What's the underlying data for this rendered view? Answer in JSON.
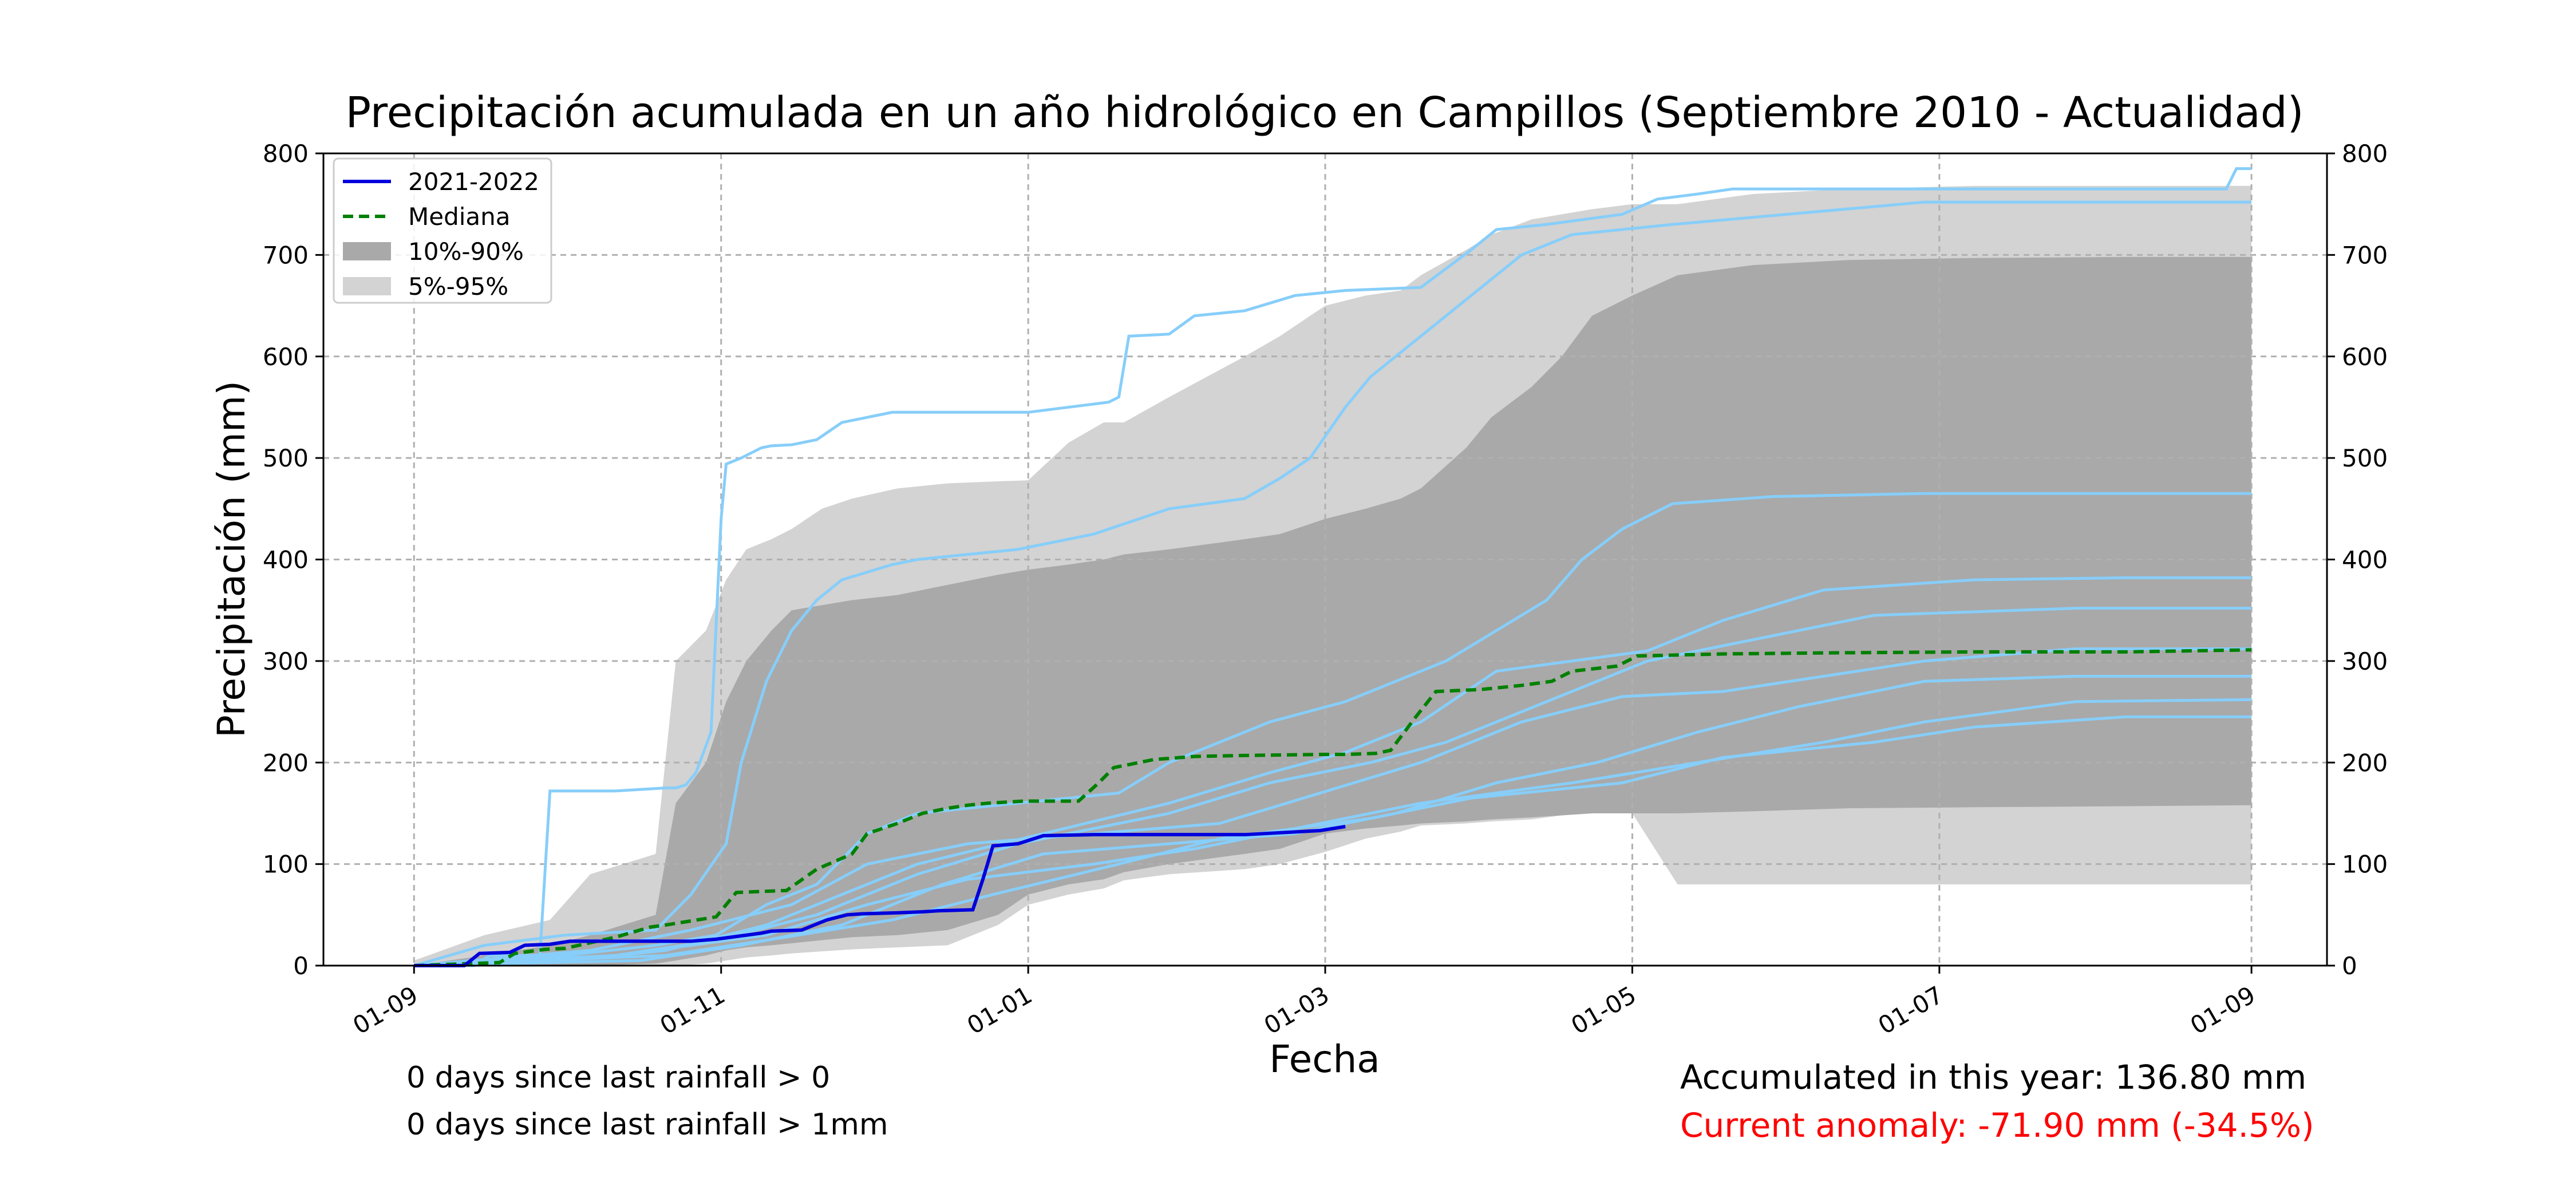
{
  "chart_data": {
    "type": "line",
    "title": "Precipitación acumulada en un año hidrológico en Campillos (Septiembre 2010 - Actualidad)",
    "xlabel": "Fecha",
    "ylabel": "Precipitación (mm)",
    "x_ticks": [
      "01-09",
      "01-11",
      "01-01",
      "01-03",
      "01-05",
      "01-07",
      "01-09"
    ],
    "x_tick_days": [
      0,
      61,
      122,
      181,
      242,
      303,
      365
    ],
    "x_range_days": [
      -18,
      380
    ],
    "ylim": [
      0,
      800
    ],
    "y_ticks": [
      0,
      100,
      200,
      300,
      400,
      500,
      600,
      700,
      800
    ],
    "grid": true,
    "legend_position": "top-left",
    "legend": [
      {
        "label": "2021-2022",
        "style": "line",
        "color": "#0000dd"
      },
      {
        "label": "Mediana",
        "style": "dashed",
        "color": "#008000"
      },
      {
        "label": "10%-90%",
        "style": "patch",
        "color": "#a9a9a9"
      },
      {
        "label": "5%-95%",
        "style": "patch",
        "color": "#d3d3d3"
      }
    ],
    "colors": {
      "current": "#0000dd",
      "median": "#008000",
      "band_10_90": "#a9a9a9",
      "band_5_95": "#d3d3d3",
      "historical": "#87cefa",
      "grid": "#b0b0b0"
    },
    "band_5_95": {
      "x": [
        0,
        14,
        27,
        35,
        48,
        52,
        58,
        62,
        66,
        71,
        75,
        81,
        87,
        96,
        106,
        116,
        122,
        130,
        137,
        141,
        150,
        165,
        172,
        181,
        189,
        196,
        200,
        209,
        214,
        222,
        228,
        234,
        242,
        251,
        266,
        285,
        310,
        340,
        365
      ],
      "lower": [
        0,
        0,
        0,
        0,
        0,
        0,
        2,
        5,
        8,
        10,
        12,
        14,
        16,
        18,
        20,
        40,
        60,
        70,
        76,
        84,
        90,
        95,
        100,
        112,
        125,
        132,
        138,
        140,
        142,
        144,
        148,
        150,
        150,
        80,
        80,
        80,
        80,
        80,
        80
      ],
      "upper": [
        5,
        30,
        45,
        90,
        110,
        300,
        330,
        380,
        410,
        420,
        430,
        450,
        460,
        470,
        475,
        477,
        478,
        515,
        535,
        535,
        560,
        600,
        620,
        650,
        660,
        665,
        680,
        705,
        720,
        735,
        740,
        745,
        750,
        750,
        760,
        765,
        768,
        768,
        768
      ]
    },
    "band_10_90": {
      "x": [
        0,
        14,
        27,
        35,
        48,
        52,
        58,
        62,
        66,
        71,
        75,
        81,
        87,
        96,
        106,
        116,
        122,
        130,
        137,
        141,
        150,
        165,
        172,
        181,
        189,
        196,
        200,
        209,
        214,
        222,
        228,
        234,
        242,
        251,
        266,
        285,
        310,
        340,
        365
      ],
      "lower": [
        0,
        0,
        0,
        0,
        2,
        5,
        10,
        15,
        18,
        20,
        22,
        25,
        28,
        30,
        35,
        50,
        70,
        80,
        85,
        92,
        100,
        110,
        115,
        130,
        135,
        138,
        140,
        142,
        144,
        146,
        148,
        150,
        150,
        150,
        152,
        155,
        156,
        157,
        158
      ],
      "upper": [
        0,
        10,
        20,
        30,
        50,
        160,
        200,
        260,
        300,
        330,
        350,
        355,
        360,
        365,
        375,
        385,
        390,
        395,
        400,
        405,
        410,
        420,
        425,
        440,
        450,
        460,
        470,
        510,
        540,
        570,
        600,
        640,
        660,
        680,
        690,
        695,
        697,
        698,
        698
      ]
    },
    "median": {
      "x": [
        0,
        17,
        20,
        26,
        30,
        40,
        47,
        50,
        60,
        64,
        74,
        80,
        87,
        90,
        96,
        101,
        106,
        110,
        114,
        121,
        127,
        132,
        136,
        139,
        147,
        155,
        165,
        180,
        185,
        191,
        194,
        199,
        203,
        212,
        220,
        226,
        230,
        239,
        243,
        260,
        280,
        310,
        340,
        365
      ],
      "y": [
        0,
        3,
        12,
        16,
        17,
        28,
        38,
        40,
        48,
        72,
        74,
        95,
        110,
        130,
        140,
        150,
        155,
        158,
        160,
        162,
        162,
        162,
        180,
        195,
        203,
        206,
        207,
        208,
        208,
        209,
        212,
        245,
        270,
        272,
        276,
        280,
        290,
        295,
        305,
        307,
        308,
        309,
        309,
        311
      ]
    },
    "series": [
      {
        "name": "2021-2022",
        "x": [
          0,
          10,
          13,
          19,
          22,
          27,
          31,
          35,
          44,
          55,
          60,
          69,
          71,
          77,
          82,
          86,
          89,
          96,
          101,
          104,
          111,
          113,
          115,
          120,
          125,
          135,
          145,
          165,
          180,
          185
        ],
        "y": [
          0,
          0,
          12,
          13,
          20,
          21,
          24,
          24,
          24,
          24,
          26,
          32,
          34,
          35,
          45,
          50,
          51,
          52,
          53,
          54,
          55,
          85,
          118,
          120,
          128,
          129,
          129,
          129,
          133,
          137
        ]
      },
      {
        "y": [
          0,
          0,
          10,
          10,
          172,
          172,
          175,
          175,
          178,
          190,
          230,
          440,
          494,
          500,
          510,
          512,
          513,
          518,
          535,
          540,
          545,
          545,
          545,
          550,
          555,
          560,
          620,
          622,
          640,
          645,
          660,
          665,
          668,
          705,
          725,
          730,
          740,
          755,
          760,
          765,
          765,
          785,
          785
        ],
        "x": [
          0,
          12,
          15,
          25,
          27,
          40,
          50,
          52,
          54,
          56,
          59,
          61,
          62,
          65,
          69,
          71,
          75,
          80,
          85,
          90,
          95,
          110,
          122,
          130,
          138,
          140,
          142,
          150,
          155,
          165,
          175,
          185,
          200,
          210,
          215,
          225,
          240,
          247,
          255,
          262,
          360,
          362,
          365
        ],
        "_dup": false
      },
      {
        "x": [
          0,
          14,
          30,
          48,
          55,
          62,
          65,
          70,
          75,
          80,
          85,
          95,
          100,
          120,
          135,
          150,
          165,
          172,
          178,
          185,
          190,
          195,
          200,
          205,
          210,
          215,
          220,
          230,
          250,
          300,
          365
        ],
        "y": [
          0,
          20,
          30,
          35,
          70,
          120,
          200,
          280,
          330,
          360,
          380,
          395,
          400,
          410,
          425,
          450,
          460,
          480,
          500,
          550,
          580,
          600,
          620,
          640,
          660,
          680,
          700,
          720,
          730,
          752,
          752
        ]
      },
      {
        "x": [
          0,
          30,
          48,
          60,
          70,
          80,
          90,
          100,
          120,
          140,
          150,
          170,
          185,
          195,
          205,
          215,
          225,
          232,
          240,
          250,
          270,
          300,
          365
        ],
        "y": [
          0,
          10,
          20,
          30,
          60,
          80,
          130,
          150,
          160,
          170,
          200,
          240,
          260,
          280,
          300,
          330,
          360,
          400,
          430,
          455,
          462,
          465,
          465
        ]
      },
      {
        "x": [
          0,
          30,
          50,
          70,
          85,
          100,
          125,
          150,
          170,
          185,
          200,
          215,
          230,
          245,
          260,
          280,
          310,
          340,
          365
        ],
        "y": [
          0,
          5,
          15,
          40,
          70,
          100,
          130,
          160,
          190,
          210,
          240,
          290,
          300,
          310,
          340,
          370,
          380,
          382,
          382
        ]
      },
      {
        "x": [
          0,
          40,
          60,
          80,
          100,
          120,
          150,
          170,
          190,
          205,
          225,
          245,
          265,
          290,
          330,
          365
        ],
        "y": [
          0,
          10,
          25,
          50,
          90,
          120,
          150,
          180,
          200,
          220,
          260,
          300,
          320,
          345,
          352,
          352
        ]
      },
      {
        "x": [
          0,
          35,
          55,
          75,
          90,
          110,
          135,
          160,
          180,
          200,
          220,
          240,
          260,
          280,
          300,
          330,
          365
        ],
        "y": [
          0,
          15,
          35,
          60,
          100,
          120,
          130,
          140,
          170,
          200,
          240,
          265,
          270,
          285,
          300,
          312,
          312
        ]
      },
      {
        "x": [
          0,
          45,
          65,
          85,
          105,
          125,
          150,
          175,
          195,
          215,
          235,
          255,
          275,
          300,
          330,
          365
        ],
        "y": [
          0,
          5,
          20,
          40,
          80,
          110,
          120,
          130,
          150,
          180,
          200,
          230,
          255,
          280,
          285,
          285
        ]
      },
      {
        "x": [
          0,
          40,
          70,
          90,
          110,
          135,
          155,
          180,
          200,
          230,
          255,
          280,
          300,
          330,
          365
        ],
        "y": [
          0,
          10,
          30,
          60,
          85,
          100,
          115,
          140,
          160,
          180,
          200,
          220,
          240,
          260,
          262
        ]
      },
      {
        "x": [
          0,
          50,
          70,
          95,
          115,
          140,
          160,
          190,
          210,
          240,
          260,
          290,
          310,
          340,
          365
        ],
        "y": [
          0,
          10,
          25,
          45,
          70,
          100,
          125,
          145,
          165,
          180,
          205,
          220,
          235,
          245,
          245
        ]
      }
    ]
  },
  "footer": {
    "days_since_gt0": "0 days since last rainfall > 0",
    "days_since_gt1": "0 days since last rainfall > 1mm",
    "accumulated": "Accumulated in this year: 136.80 mm",
    "anomaly": "Current anomaly: -71.90 mm (-34.5%)"
  }
}
